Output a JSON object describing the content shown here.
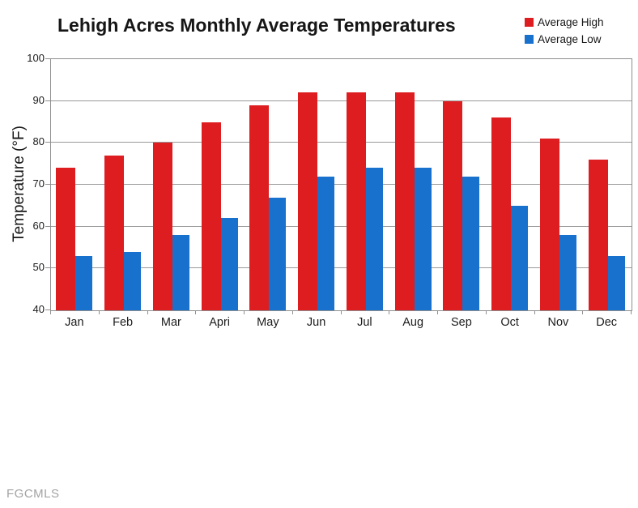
{
  "title": "Lehigh Acres Monthly Average Temperatures",
  "watermark": "FGCMLS",
  "colors": {
    "high": "#de1d20",
    "low": "#1871cc",
    "grid": "#9a9a9a",
    "text": "#161616"
  },
  "chart_data": {
    "type": "bar",
    "title": "Lehigh Acres Monthly Average Temperatures",
    "categories": [
      "Jan",
      "Feb",
      "Mar",
      "Apri",
      "May",
      "Jun",
      "Jul",
      "Aug",
      "Sep",
      "Oct",
      "Nov",
      "Dec"
    ],
    "series": [
      {
        "name": "Average High",
        "color": "#de1d20",
        "values": [
          74,
          77,
          80,
          85,
          89,
          92,
          92,
          92,
          90,
          86,
          81,
          76
        ]
      },
      {
        "name": "Average Low",
        "color": "#1871cc",
        "values": [
          53,
          54,
          58,
          62,
          67,
          72,
          74,
          74,
          72,
          65,
          58,
          53
        ]
      }
    ],
    "xlabel": "",
    "ylabel": "Temperature (°F)",
    "ylim": [
      40,
      100
    ],
    "yticks": [
      40,
      50,
      60,
      70,
      80,
      90,
      100
    ],
    "grid": true,
    "legend_position": "top-right"
  }
}
